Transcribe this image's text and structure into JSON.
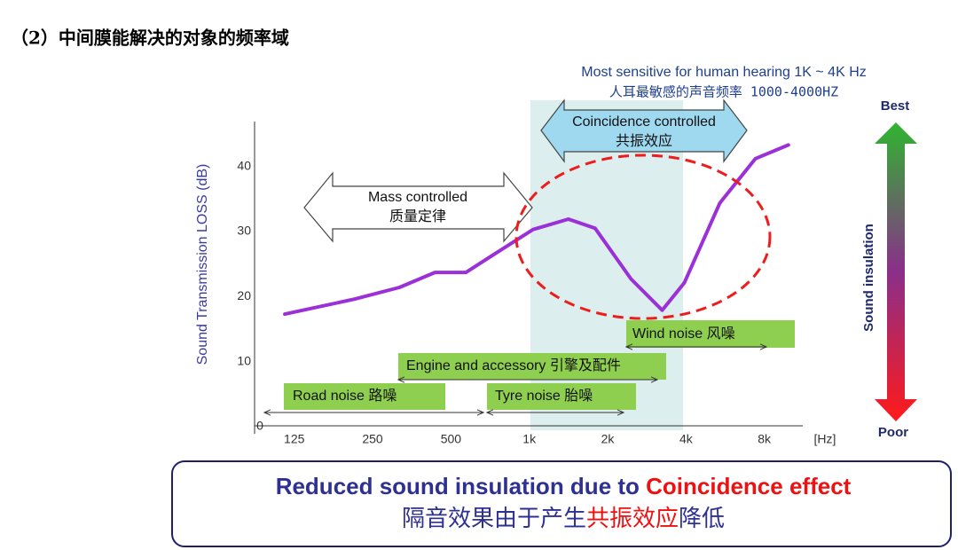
{
  "chart_data": {
    "type": "line",
    "title": "（2）中间膜能解决的对象的频率域",
    "y_label": "Sound  Transmission LOSS (dB)",
    "x_label": "[Hz]",
    "x": [
      115,
      213,
      317,
      434,
      571,
      753,
      1034,
      1414,
      1790,
      2460,
      3240,
      3940,
      5400,
      7400,
      9900
    ],
    "series": [
      {
        "color": "#9b30d9",
        "values": [
          18.4,
          20.7,
          22.5,
          24.8,
          24.8,
          27.9,
          31.4,
          33.0,
          31.6,
          23.8,
          19.0,
          23.2,
          35.5,
          42.3,
          44.4
        ]
      }
    ],
    "xlim": [
      88,
      16000
    ],
    "xticks": [
      125,
      250,
      500,
      {
        "value": 1000,
        "label": "1k"
      },
      {
        "value": 2000,
        "label": "2k"
      },
      {
        "value": 4000,
        "label": "4k"
      },
      {
        "value": 8000,
        "label": "8k"
      }
    ],
    "log_x": true,
    "ylim": [
      0,
      48
    ],
    "yticks": [
      0,
      10,
      20,
      30,
      40
    ],
    "annotations": {
      "sensitive_en": "Most sensitive for human hearing   1K ~ 4K Hz",
      "sensitive_cn": "人耳最敏感的声音频率 1000-4000HZ",
      "mass_en": "Mass controlled",
      "mass_cn": "质量定律",
      "coincidence_en": "Coincidence controlled",
      "coincidence_cn": "共振效应",
      "wind": "Wind noise  风噪",
      "engine": "Engine and accessory  引擎及配件",
      "road": "Road noise  路噪",
      "tyre": "Tyre noise  胎噪",
      "best": "Best",
      "poor": "Poor",
      "scale_label": "Sound insulation"
    },
    "conclusion": {
      "line1": [
        "Reduced sound insulation due to ",
        "Coincidence effect"
      ],
      "line2": [
        "隔音效果由于产生",
        "共振效应",
        "降低"
      ]
    }
  }
}
